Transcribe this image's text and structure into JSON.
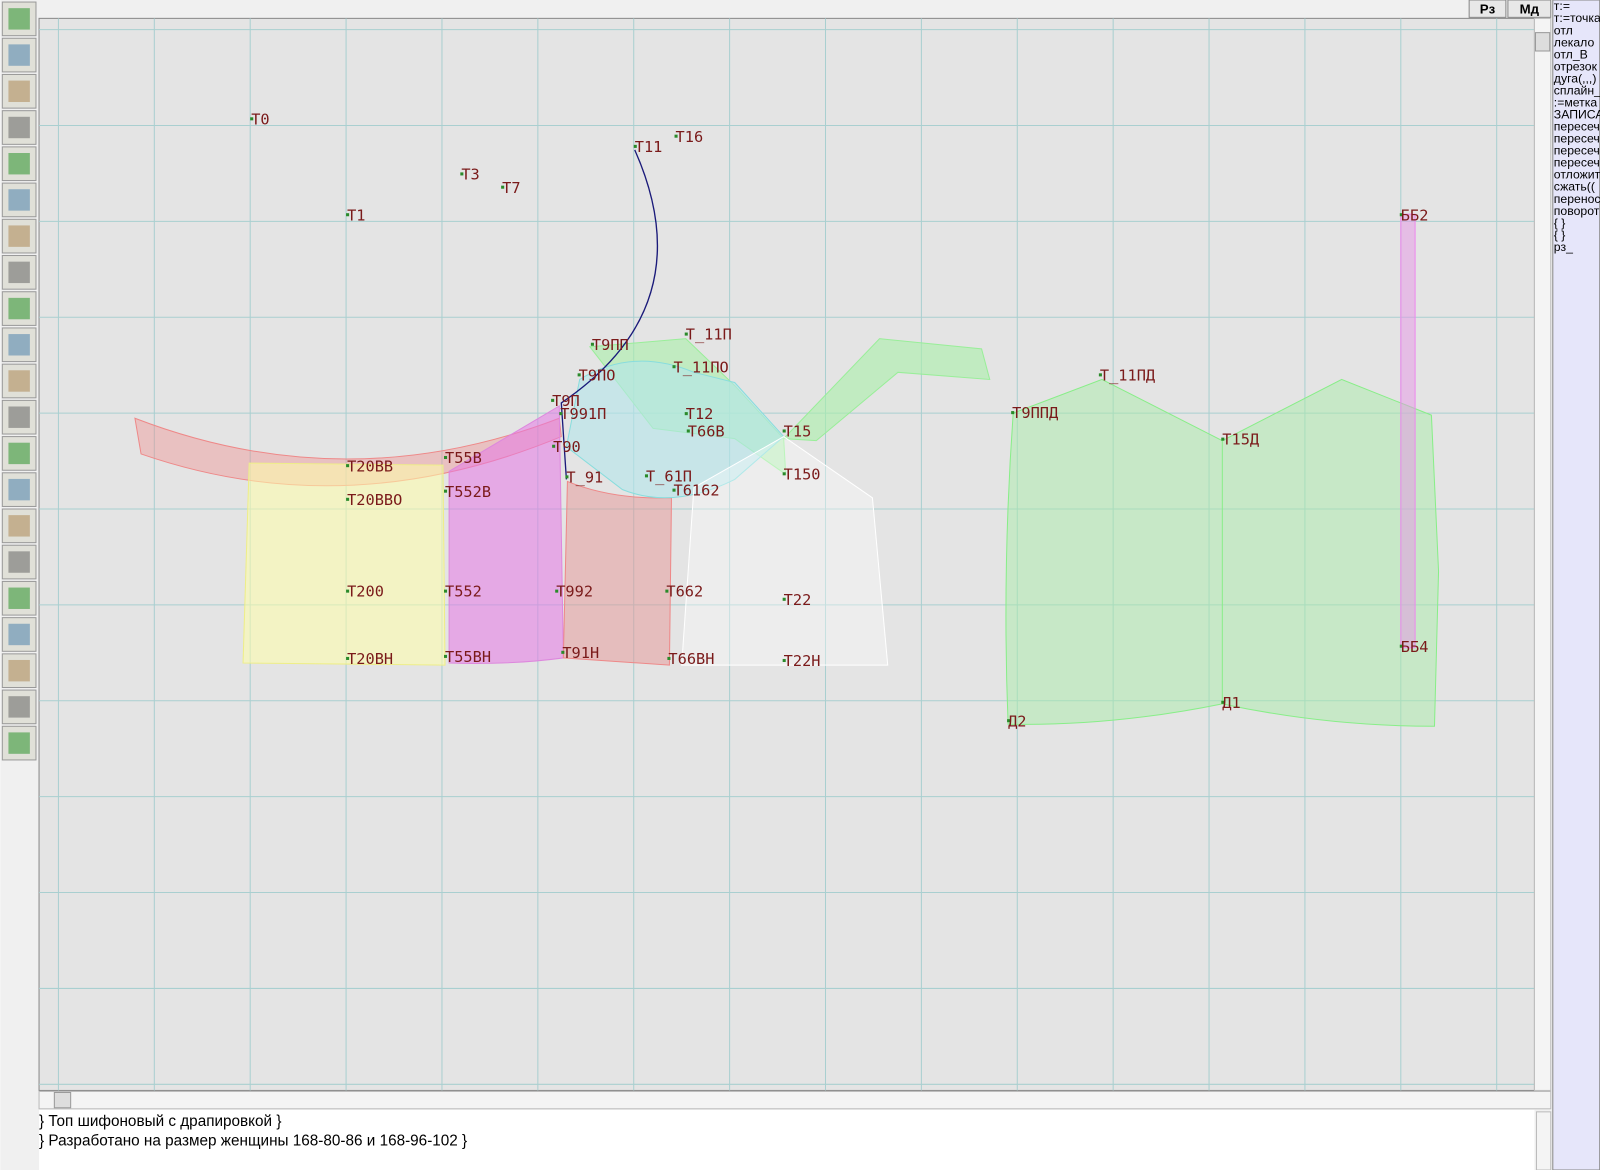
{
  "toolbar": {
    "buttons": [
      "Рз",
      "Мд"
    ]
  },
  "points": [
    "Т0",
    "Т1",
    "Т3",
    "Т7",
    "Т11",
    "Т16",
    "Т9ПП",
    "Т_11П",
    "Т9ПО",
    "Т_11ПО",
    "Т9П",
    "Т991П",
    "Т12",
    "Т66В",
    "Т15",
    "Т90",
    "Т20ВВ",
    "Т55В",
    "Т_91",
    "Т_61П",
    "Т150",
    "Т20ВВО",
    "Т552В",
    "Т6162",
    "Т200",
    "Т552",
    "Т992",
    "Т662",
    "Т22",
    "Т20ВН",
    "Т55ВН",
    "Т91Н",
    "Т66ВН",
    "Т22Н",
    "Т_11ПД",
    "Т9ППД",
    "Т15Д",
    "Д1",
    "Д2",
    "ББ2",
    "ББ4"
  ],
  "commands": [
    "т:=",
    "т:=точка",
    "отл",
    "лекало",
    "отл_В",
    "отрезок",
    "дуга(,,,)",
    "сплайн_",
    ":=метка",
    "ЗАПИСА",
    "пересеч",
    "пересеч",
    "пересеч",
    "пересеч",
    "отложит",
    "сжать((",
    "перенос",
    "поворот",
    "{ }",
    "{ }",
    "рз_"
  ],
  "notes": [
    "} Топ шифоновый с драпировкой }",
    "} Разработано на размер женщины 168-80-86 и 168-96-102 }"
  ]
}
